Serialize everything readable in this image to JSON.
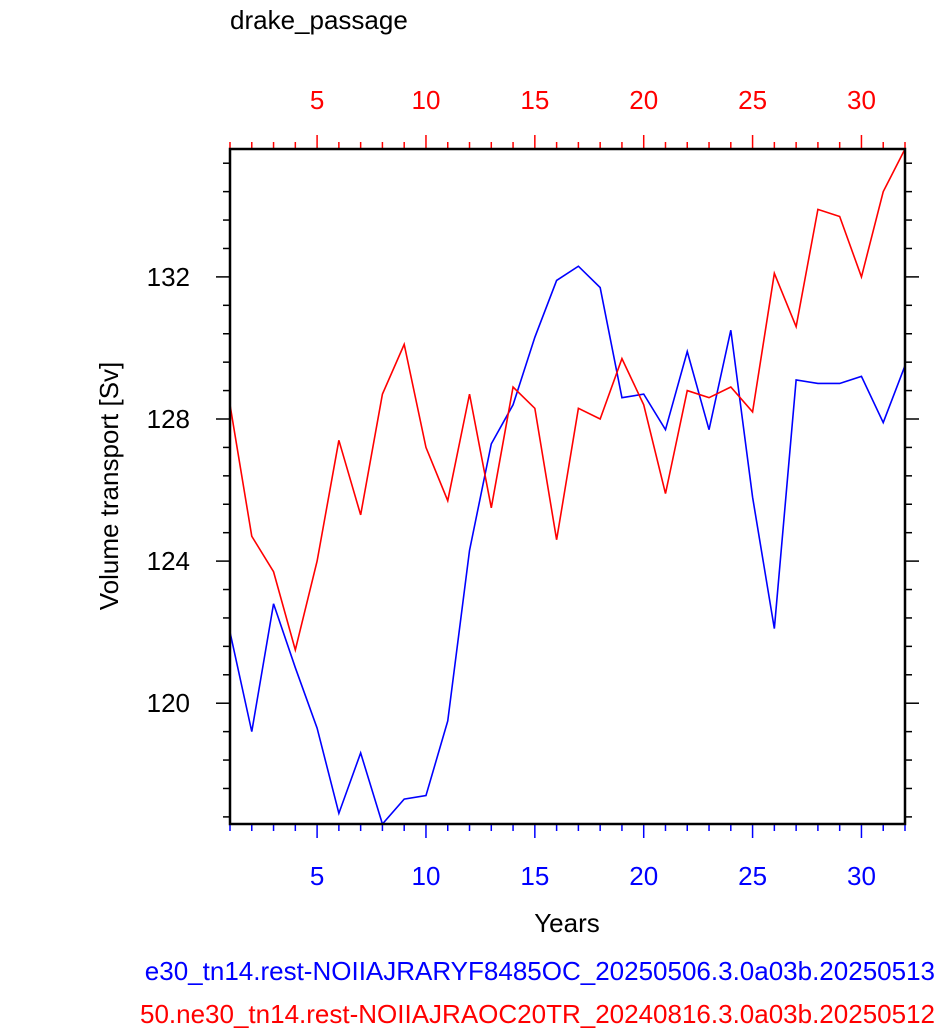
{
  "chart_data": {
    "type": "line",
    "title": "drake_passage",
    "xlabel": "Years",
    "ylabel": "Volume transport [Sv]",
    "xlim": [
      1,
      32
    ],
    "ylim": [
      116.6,
      135.6
    ],
    "x_ticks_major": [
      5,
      10,
      15,
      20,
      25,
      30
    ],
    "y_ticks_major": [
      120,
      124,
      128,
      132
    ],
    "grid": false,
    "bottom_axis_color": "#0000ff",
    "top_axis_color": "#ff0000",
    "series": [
      {
        "name": "e30_tn14.rest-NOIIAJRARYF8485OC_20250506.3.0a03b.20250513",
        "color": "#0000ff",
        "x": [
          1,
          2,
          3,
          4,
          5,
          6,
          7,
          8,
          9,
          10,
          11,
          12,
          13,
          14,
          15,
          16,
          17,
          18,
          19,
          20,
          21,
          22,
          23,
          24,
          25,
          26,
          27,
          28,
          29,
          30,
          31,
          32
        ],
        "values": [
          122.0,
          119.2,
          122.8,
          121.0,
          119.3,
          116.9,
          118.6,
          116.6,
          117.3,
          117.4,
          119.5,
          124.3,
          127.3,
          128.4,
          130.3,
          131.9,
          132.3,
          131.7,
          128.6,
          128.7,
          127.7,
          129.9,
          127.7,
          130.5,
          125.8,
          122.1,
          129.1,
          129.0,
          129.0,
          129.2,
          127.9,
          129.5
        ]
      },
      {
        "name": "50.ne30_tn14.rest-NOIIAJRAOC20TR_20240816.3.0a03b.20250512",
        "color": "#ff0000",
        "x": [
          1,
          2,
          3,
          4,
          5,
          6,
          7,
          8,
          9,
          10,
          11,
          12,
          13,
          14,
          15,
          16,
          17,
          18,
          19,
          20,
          21,
          22,
          23,
          24,
          25,
          26,
          27,
          28,
          29,
          30,
          31,
          32
        ],
        "values": [
          128.4,
          124.7,
          123.7,
          121.5,
          124.0,
          127.4,
          125.3,
          128.7,
          130.1,
          127.2,
          125.7,
          128.7,
          125.5,
          128.9,
          128.3,
          124.6,
          128.3,
          128.0,
          129.7,
          128.4,
          125.9,
          128.8,
          128.6,
          128.9,
          128.2,
          132.1,
          130.6,
          133.9,
          133.7,
          132.0,
          134.4,
          135.6
        ]
      }
    ]
  }
}
